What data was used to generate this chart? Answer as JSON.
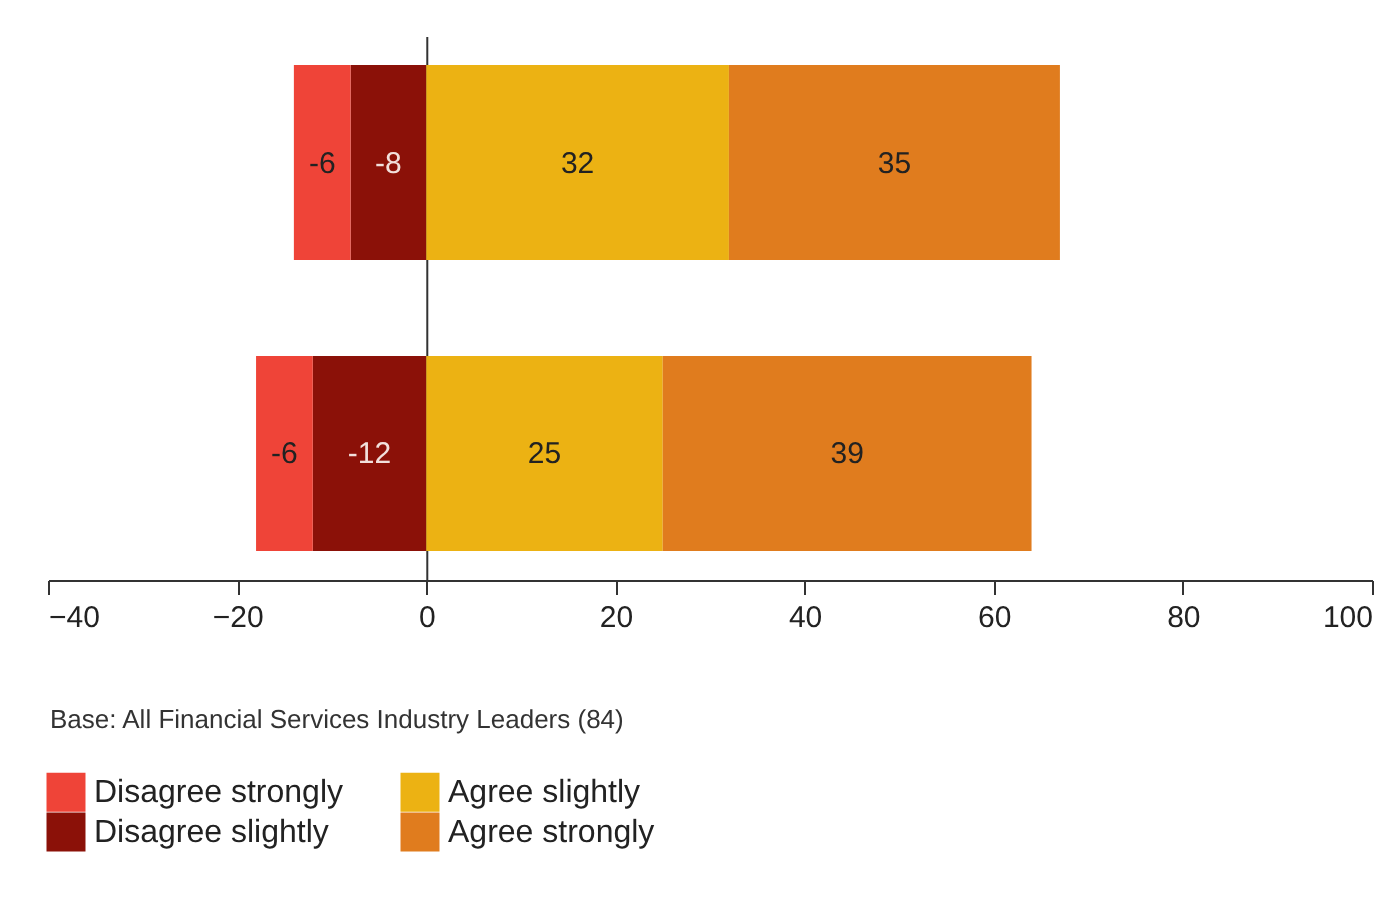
{
  "chart_data": {
    "type": "bar",
    "orientation": "horizontal",
    "stacked": true,
    "categories": [
      null,
      null
    ],
    "series": [
      {
        "name": "Disagree slightly",
        "color": "#8b1108",
        "values": [
          -8,
          -12
        ]
      },
      {
        "name": "Disagree strongly",
        "color": "#ef4438",
        "values": [
          -6,
          -6
        ]
      },
      {
        "name": "Agree slightly",
        "color": "#ecb213",
        "values": [
          32,
          25
        ]
      },
      {
        "name": "Agree strongly",
        "color": "#e07c1e",
        "values": [
          35,
          39
        ]
      }
    ],
    "xlim": [
      -40,
      100
    ],
    "xticks": [
      -40,
      -20,
      0,
      20,
      40,
      60,
      80,
      100
    ],
    "data_labels": true,
    "legend": "bottom left",
    "annotations": [
      "Base: All Financial Services Industry Leaders (84)"
    ]
  }
}
